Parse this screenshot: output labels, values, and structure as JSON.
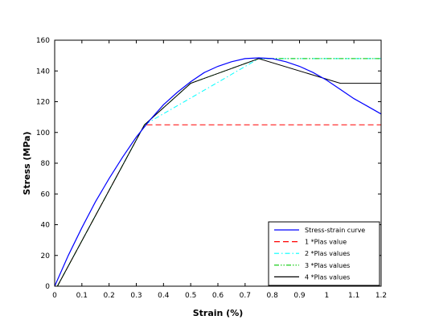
{
  "chart_data": {
    "type": "line",
    "xlabel": "Strain (%)",
    "ylabel": "Stress (MPa)",
    "xlim": [
      0,
      1.2
    ],
    "ylim": [
      0,
      160
    ],
    "x_ticks": [
      0,
      0.1,
      0.2,
      0.3,
      0.4,
      0.5,
      0.6,
      0.7,
      0.8,
      0.9,
      1,
      1.1,
      1.2
    ],
    "x_tick_labels": [
      "0",
      "0.1",
      "0.2",
      "0.3",
      "0.4",
      "0.5",
      "0.6",
      "0.7",
      "0.8",
      "0.9",
      "1",
      "1.1",
      "1.2"
    ],
    "y_ticks": [
      0,
      20,
      40,
      60,
      80,
      100,
      120,
      140,
      160
    ],
    "y_tick_labels": [
      "0",
      "20",
      "40",
      "60",
      "80",
      "100",
      "120",
      "140",
      "160"
    ],
    "grid": false,
    "legend_position": "bottom-right",
    "series": [
      {
        "name": "Stress-strain curve",
        "color": "#0000ff",
        "dash": "solid",
        "x": [
          0,
          0.05,
          0.1,
          0.15,
          0.2,
          0.25,
          0.3,
          0.35,
          0.4,
          0.45,
          0.5,
          0.55,
          0.6,
          0.65,
          0.7,
          0.75,
          0.8,
          0.85,
          0.9,
          0.95,
          1.0,
          1.05,
          1.1,
          1.15,
          1.2
        ],
        "y": [
          0,
          20,
          38,
          55,
          70,
          84,
          97,
          108,
          118,
          126,
          133,
          139,
          143,
          146,
          148,
          148.5,
          148,
          146,
          143,
          139,
          134,
          128,
          122,
          117,
          112
        ]
      },
      {
        "name": "1 *Plas value",
        "color": "#ff0000",
        "dash": "dashed",
        "x": [
          0.01,
          0.33,
          1.2
        ],
        "y": [
          0,
          105,
          105
        ]
      },
      {
        "name": "2 *Plas values",
        "color": "#00ffff",
        "dash": "dashdot",
        "x": [
          0.01,
          0.33,
          0.75,
          1.2
        ],
        "y": [
          0,
          105,
          148,
          148
        ]
      },
      {
        "name": "3 *Plas values",
        "color": "#00c800",
        "dash": "dashdotdot",
        "x": [
          0.01,
          0.33,
          0.5,
          0.75,
          1.2
        ],
        "y": [
          0,
          105,
          132,
          148,
          148
        ]
      },
      {
        "name": "4 *Plas values",
        "color": "#000000",
        "dash": "solid",
        "x": [
          0.01,
          0.33,
          0.5,
          0.75,
          1.05,
          1.2
        ],
        "y": [
          0,
          105,
          132,
          148,
          132,
          132
        ]
      }
    ]
  }
}
